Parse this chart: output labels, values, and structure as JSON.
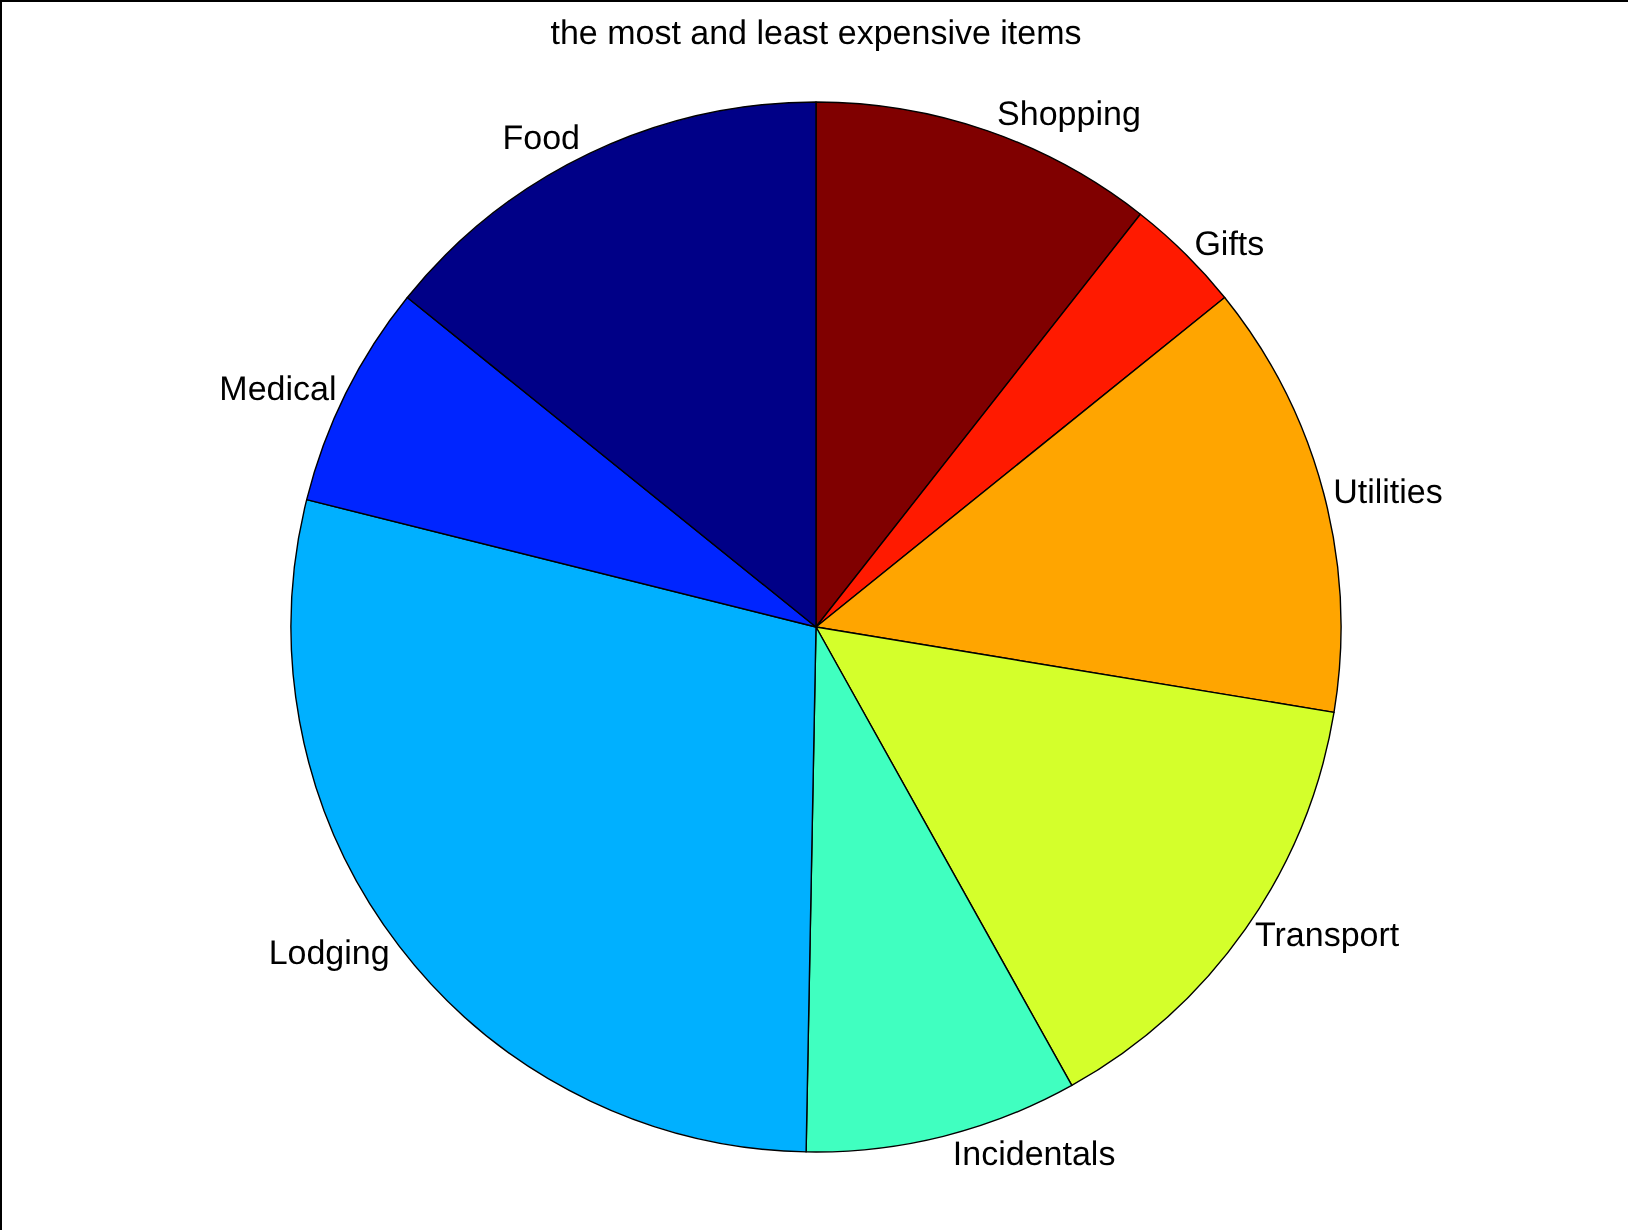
{
  "chart_data": {
    "type": "pie",
    "title": "the most and least expensive items",
    "categories": [
      "Shopping",
      "Gifts",
      "Utilities",
      "Transport",
      "Incidentals",
      "Lodging",
      "Medical",
      "Food"
    ],
    "values": [
      10.6,
      3.6,
      13.4,
      14.3,
      8.4,
      28.6,
      6.9,
      14.2
    ],
    "colors": [
      "#800000",
      "#ff1a00",
      "#ffa500",
      "#d4ff2b",
      "#40ffc0",
      "#00b0ff",
      "#0025ff",
      "#000087"
    ],
    "legend": false
  }
}
